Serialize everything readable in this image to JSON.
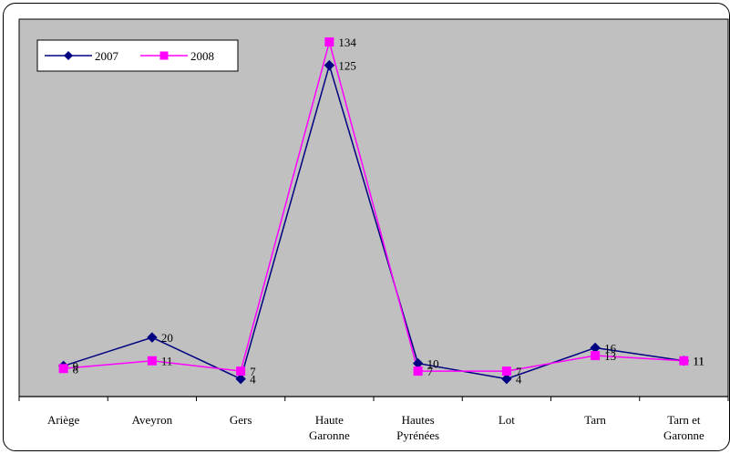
{
  "chart_data": {
    "type": "line",
    "title": "",
    "xlabel": "",
    "ylabel": "",
    "categories": [
      "Ariège",
      "Aveyron",
      "Gers",
      "Haute\nGaronne",
      "Hautes\nPyrénées",
      "Lot",
      "Tarn",
      "Tarn et\nGaronne"
    ],
    "ylim": [
      0,
      140
    ],
    "grid": false,
    "legend_position": "top-left",
    "plot_background": "#c0c0c0",
    "series": [
      {
        "name": "2007",
        "color": "#000080",
        "marker": "diamond",
        "values": [
          9,
          20,
          4,
          125,
          10,
          4,
          16,
          11
        ],
        "labels": [
          "9",
          "20",
          "4",
          "125",
          "10",
          "4",
          "16",
          "11"
        ]
      },
      {
        "name": "2008",
        "color": "#ff00ff",
        "marker": "square",
        "values": [
          8,
          11,
          7,
          134,
          7,
          7,
          13,
          11
        ],
        "labels": [
          "8",
          "11",
          "7",
          "134",
          "7",
          "7",
          "13",
          "11"
        ]
      }
    ]
  }
}
